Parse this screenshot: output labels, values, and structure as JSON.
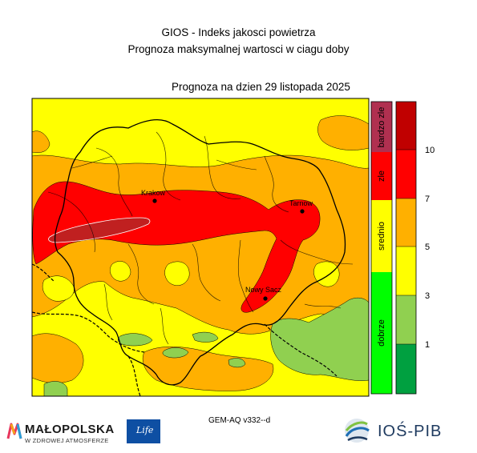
{
  "header": {
    "title_line1": "GIOS - Indeks jakosci powietrza",
    "title_line2": "Prognoza maksymalnej wartosci w ciagu doby",
    "forecast_date": "Prognoza na dzien  29 listopada 2025"
  },
  "map": {
    "cities": [
      {
        "name": "Krakow"
      },
      {
        "name": "Tarnow"
      },
      {
        "name": "Nowy Sacz"
      }
    ]
  },
  "legend": {
    "categories": [
      {
        "label": "bardzo zle",
        "color": "#b03050"
      },
      {
        "label": "zle",
        "color": "#ff0000"
      },
      {
        "label": "srednio",
        "color": "#ffff00"
      },
      {
        "label": "dobrze",
        "color": "#00ff00"
      }
    ],
    "scale_colors": [
      "#00a040",
      "#90d050",
      "#ffff00",
      "#ffb000",
      "#ff0000",
      "#c00000"
    ],
    "ticks": [
      "1",
      "3",
      "5",
      "7",
      "10"
    ]
  },
  "footer": {
    "model": "GEM-AQ v332--d",
    "malopolska_name": "MAŁOPOLSKA",
    "malopolska_slogan": "W ZDROWEJ ATMOSFERZE",
    "eu_life": "Life",
    "ios_name": "IOŚ-PIB"
  }
}
